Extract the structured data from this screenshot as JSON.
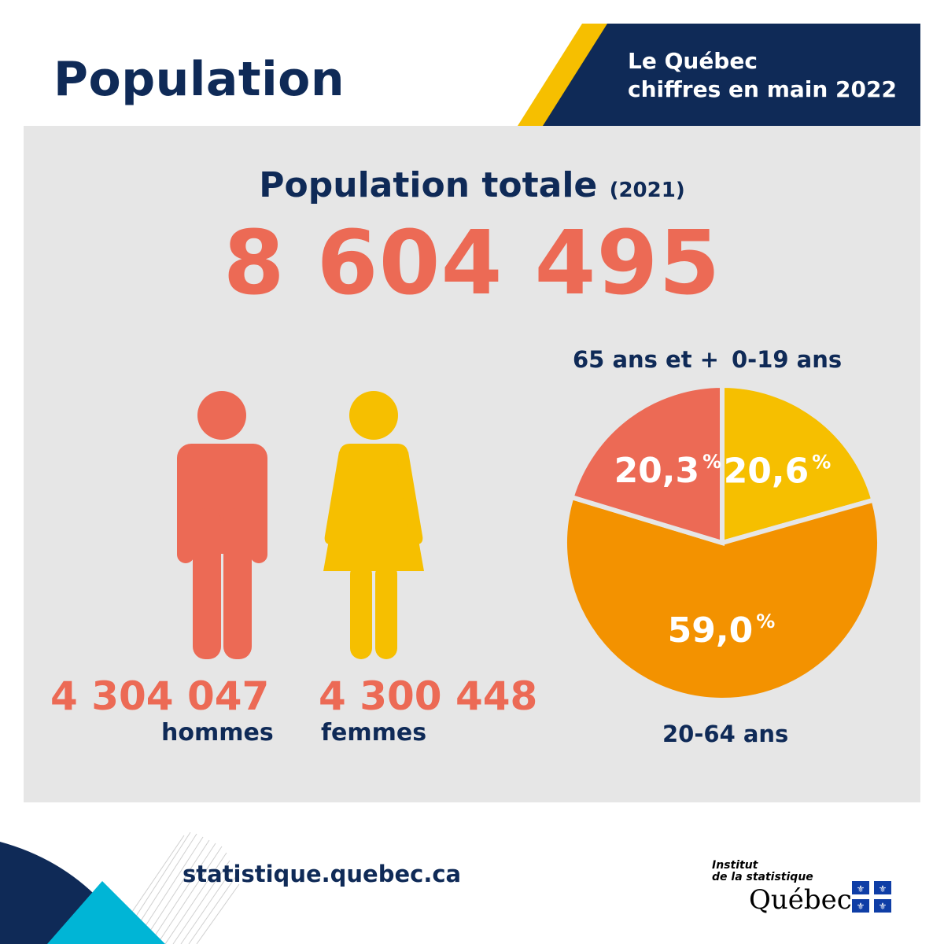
{
  "header": {
    "title": "Population",
    "banner_line1": "Le Québec",
    "banner_line2": "chiffres en main 2022",
    "colors": {
      "navy": "#0f2a57",
      "yellow": "#f6bf00"
    }
  },
  "headline": {
    "label": "Population totale",
    "year": "(2021)",
    "total": "8 604 495"
  },
  "sex": {
    "men": {
      "value": "4 304 047",
      "label": "hommes",
      "icon": "man-icon",
      "color": "#ec6a55"
    },
    "women": {
      "value": "4 300 448",
      "label": "femmes",
      "icon": "woman-icon",
      "color": "#f6bf00"
    }
  },
  "chart_data": {
    "type": "pie",
    "title": "",
    "slices": [
      {
        "label": "0-19 ans",
        "value": 20.6,
        "display": "20,6",
        "color": "#f6bf00"
      },
      {
        "label": "20-64 ans",
        "value": 59.0,
        "display": "59,0",
        "color": "#f39200"
      },
      {
        "label": "65 ans et +",
        "value": 20.3,
        "display": "20,3",
        "color": "#ec6a55"
      }
    ],
    "unit": "%",
    "legend": "none"
  },
  "footer": {
    "url": "statistique.quebec.ca",
    "logo_line1": "Institut",
    "logo_line2": "de la statistique",
    "logo_line3": "Québec",
    "logo_icon": "quebec-flag-icon"
  }
}
